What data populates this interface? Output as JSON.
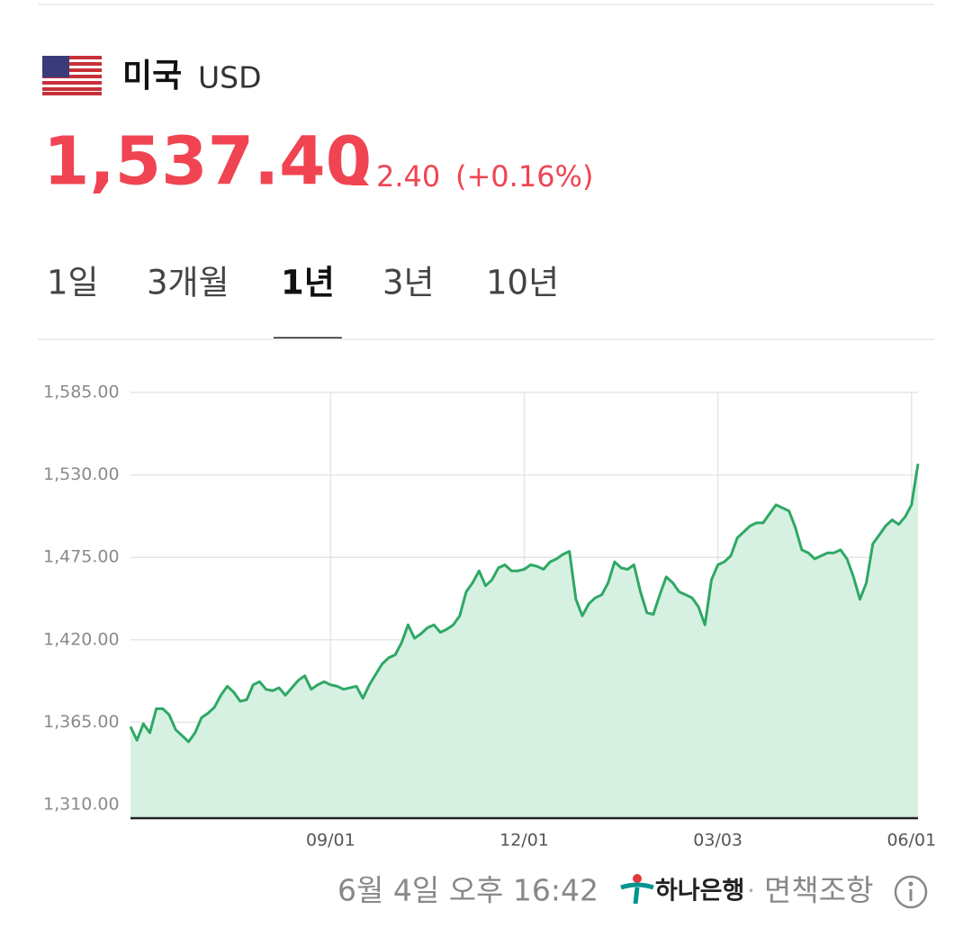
{
  "header": {
    "country": "미국",
    "currency": "USD"
  },
  "quote": {
    "price": "1,537.40",
    "change": "2.40",
    "change_percent": "(+0.16%)"
  },
  "tabs": [
    "1일",
    "3개월",
    "1년",
    "3년",
    "10년"
  ],
  "active_tab": 2,
  "chart_data": {
    "type": "area",
    "categories": [
      null,
      null,
      null,
      null,
      null,
      null,
      null,
      null,
      null,
      null,
      null,
      null,
      null,
      null,
      null,
      null,
      null,
      null,
      null,
      null,
      null,
      null,
      null,
      null,
      null,
      null,
      null,
      null,
      null,
      null,
      null,
      "09/01",
      null,
      null,
      null,
      null,
      null,
      null,
      null,
      null,
      null,
      null,
      null,
      null,
      null,
      null,
      null,
      null,
      null,
      null,
      null,
      null,
      null,
      null,
      null,
      null,
      null,
      null,
      null,
      null,
      null,
      "12/01",
      null,
      null,
      null,
      null,
      null,
      null,
      null,
      null,
      null,
      null,
      null,
      null,
      null,
      null,
      null,
      null,
      null,
      null,
      null,
      null,
      null,
      null,
      null,
      null,
      null,
      null,
      null,
      null,
      null,
      "03/03",
      null,
      null,
      null,
      null,
      null,
      null,
      null,
      null,
      null,
      null,
      null,
      null,
      null,
      null,
      null,
      null,
      null,
      null,
      null,
      null,
      null,
      null,
      null,
      null,
      null,
      null,
      null,
      null,
      null,
      "06/01",
      null
    ],
    "series": [
      {
        "color": "#2fa865",
        "fill": "#d6f1e2",
        "values": [
          1362,
          1353,
          1364,
          1358,
          1374,
          1374,
          1370,
          1360,
          1356,
          1352,
          1358,
          1368,
          1371,
          1375,
          1383,
          1389,
          1385,
          1379,
          1380,
          1390,
          1392,
          1387,
          1386,
          1388,
          1383,
          1388,
          1393,
          1396,
          1387,
          1390,
          1392,
          1390,
          1389,
          1387,
          1388,
          1389,
          1381,
          1390,
          1397,
          1404,
          1408,
          1410,
          1418,
          1430,
          1421,
          1424,
          1428,
          1430,
          1425,
          1427,
          1430,
          1436,
          1452,
          1458,
          1466,
          1456,
          1460,
          1468,
          1470,
          1466,
          1466,
          1467,
          1470,
          1469,
          1467,
          1472,
          1474,
          1477,
          1479,
          1447,
          1436,
          1444,
          1448,
          1450,
          1458,
          1472,
          1468,
          1467,
          1470,
          1452,
          1438,
          1437,
          1450,
          1462,
          1458,
          1452,
          1450,
          1448,
          1442,
          1430,
          1460,
          1470,
          1472,
          1476,
          1488,
          1492,
          1496,
          1498,
          1498,
          1504,
          1510,
          1508,
          1506,
          1495,
          1480,
          1478,
          1474,
          1476,
          1478,
          1478,
          1480,
          1474,
          1462,
          1447,
          1458,
          1484,
          1490,
          1496,
          1500,
          1497,
          1502,
          1510,
          1537.4
        ]
      }
    ],
    "ylim": [
      1301,
      1585
    ],
    "yticks": [
      {
        "value": 1585,
        "label": "1,585.00"
      },
      {
        "value": 1530,
        "label": "1,530.00"
      },
      {
        "value": 1475,
        "label": "1,475.00"
      },
      {
        "value": 1420,
        "label": "1,420.00"
      },
      {
        "value": 1365,
        "label": "1,365.00"
      },
      {
        "value": 1310,
        "label": "1,310.00"
      }
    ],
    "grid": true
  },
  "footer": {
    "timestamp": "6월 4일 오후 16:42",
    "bank": "하나은행",
    "separator": "·",
    "disclaimer": "면책조항"
  }
}
